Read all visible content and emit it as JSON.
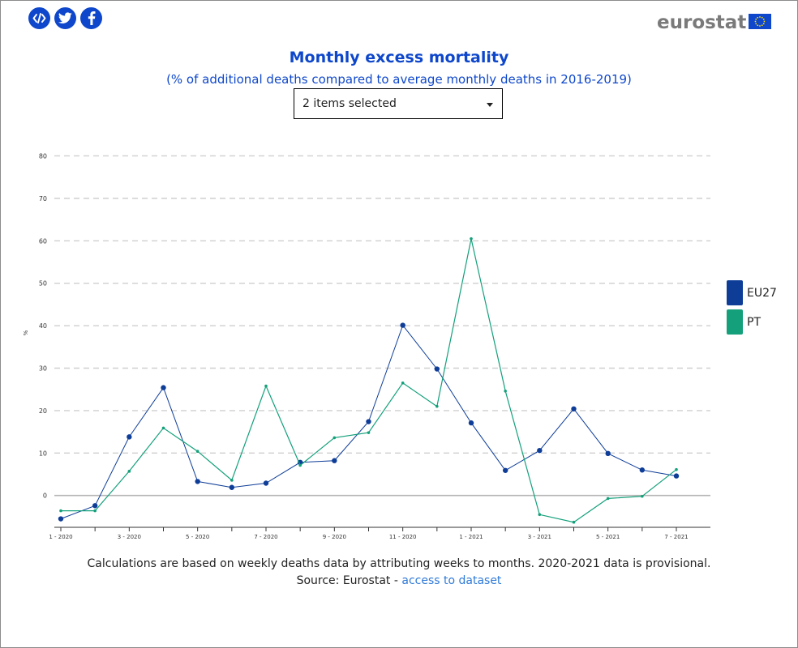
{
  "share": {
    "embed_icon": "embed-code-icon",
    "twitter_icon": "twitter-icon",
    "facebook_icon": "facebook-icon"
  },
  "brand": {
    "logo_text": "eurostat",
    "flag_icon": "eu-flag-icon"
  },
  "title": "Monthly excess mortality",
  "subtitle": "(% of additional deaths compared to average monthly deaths in 2016-2019)",
  "selector": {
    "value": "2 items selected"
  },
  "colors": {
    "EU27": "#0e3d98",
    "PT": "#13a07a",
    "accent": "#0e47cb"
  },
  "chart_data": {
    "type": "line",
    "ylabel": "%",
    "xlabel": "",
    "ylim": [
      -7.5,
      82
    ],
    "yticks": [
      0,
      10,
      20,
      30,
      40,
      50,
      60,
      70,
      80
    ],
    "grid": true,
    "legend_position": "right",
    "x": [
      "1 - 2020",
      "2 - 2020",
      "3 - 2020",
      "4 - 2020",
      "5 - 2020",
      "6 - 2020",
      "7 - 2020",
      "8 - 2020",
      "9 - 2020",
      "10 - 2020",
      "11 - 2020",
      "12 - 2020",
      "1 - 2021",
      "2 - 2021",
      "3 - 2021",
      "4 - 2021",
      "5 - 2021",
      "6 - 2021",
      "7 - 2021"
    ],
    "xtick_labels": [
      "1 - 2020",
      "",
      "3 - 2020",
      "",
      "5 - 2020",
      "",
      "7 - 2020",
      "",
      "9 - 2020",
      "",
      "11 - 2020",
      "",
      "1 - 2021",
      "",
      "3 - 2021",
      "",
      "5 - 2021",
      "",
      "7 - 2021"
    ],
    "series": [
      {
        "name": "EU27",
        "values": [
          -5.5,
          -2.4,
          13.8,
          25.4,
          3.3,
          1.9,
          2.9,
          7.8,
          8.2,
          17.4,
          40.1,
          29.8,
          17.1,
          5.9,
          10.6,
          20.4,
          9.9,
          6.0,
          4.6
        ]
      },
      {
        "name": "PT",
        "values": [
          -3.6,
          -3.6,
          5.7,
          15.9,
          10.4,
          3.6,
          25.8,
          7.1,
          13.6,
          14.8,
          26.5,
          21.0,
          60.5,
          24.6,
          -4.5,
          -6.3,
          -0.7,
          -0.2,
          6.1
        ]
      }
    ]
  },
  "footnote": "Calculations are based on weekly deaths data by attributing weeks to months. 2020-2021 data is provisional.",
  "source": {
    "prefix": "Source: Eurostat - ",
    "link_text": "access to dataset"
  }
}
